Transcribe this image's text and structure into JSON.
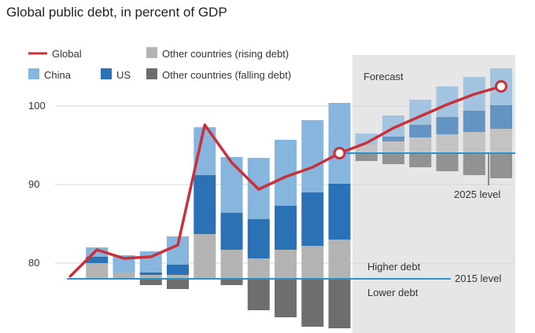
{
  "chart_data": {
    "type": "bar",
    "title": "Global public debt, in percent of GDP",
    "xlabel": "",
    "ylabel": "",
    "ylim": [
      75,
      105
    ],
    "yticks": [
      80,
      90,
      100
    ],
    "baseline_2015": 78.0,
    "baseline_2025": 94.0,
    "forecast_from_index": 10,
    "series": [
      {
        "name": "Global",
        "type": "line",
        "color": "#c8303c",
        "values": [
          78.3,
          81.7,
          80.6,
          80.8,
          82.3,
          97.6,
          92.8,
          89.4,
          91.0,
          92.2,
          94.0,
          95.3,
          97.2,
          98.7,
          100.2,
          101.5,
          102.5
        ]
      },
      {
        "name": "China",
        "type": "bar",
        "color": "#86b5de"
      },
      {
        "name": "US",
        "type": "bar",
        "color": "#2b71b5"
      },
      {
        "name": "Other countries (rising debt)",
        "type": "bar",
        "color": "#b3b3b3"
      },
      {
        "name": "Other countries (falling debt)",
        "type": "bar",
        "color": "#6e6e6e"
      }
    ],
    "stacks": [
      {
        "other_rising": 0.0,
        "us": 0.0,
        "china": 0.0,
        "falling": 0.0
      },
      {
        "other_rising": 2.0,
        "us": 0.8,
        "china": 1.2,
        "falling": 0.0
      },
      {
        "other_rising": 0.8,
        "us": 0.0,
        "china": 2.2,
        "falling": 0.0
      },
      {
        "other_rising": 0.5,
        "us": 0.3,
        "china": 2.7,
        "falling": -0.8
      },
      {
        "other_rising": 0.5,
        "us": 1.3,
        "china": 3.6,
        "falling": -1.3
      },
      {
        "other_rising": 5.7,
        "us": 7.5,
        "china": 6.1,
        "falling": 0.0
      },
      {
        "other_rising": 3.7,
        "us": 4.7,
        "china": 7.1,
        "falling": -0.8
      },
      {
        "other_rising": 2.6,
        "us": 5.0,
        "china": 7.8,
        "falling": -4.0
      },
      {
        "other_rising": 3.7,
        "us": 5.6,
        "china": 8.4,
        "falling": -4.9
      },
      {
        "other_rising": 4.2,
        "us": 6.8,
        "china": 9.2,
        "falling": -6.1
      },
      {
        "other_rising": 5.0,
        "us": 7.1,
        "china": 10.3,
        "falling": -6.3
      },
      {
        "other_rising": 1.1,
        "us": 0.0,
        "china": 1.4,
        "falling": -1.0
      },
      {
        "other_rising": 1.5,
        "us": 0.6,
        "china": 2.7,
        "falling": -1.4
      },
      {
        "other_rising": 2.0,
        "us": 1.6,
        "china": 3.2,
        "falling": -1.8
      },
      {
        "other_rising": 2.4,
        "us": 2.2,
        "china": 3.9,
        "falling": -2.3
      },
      {
        "other_rising": 2.7,
        "us": 2.7,
        "china": 4.3,
        "falling": -2.8
      },
      {
        "other_rising": 3.1,
        "us": 3.0,
        "china": 4.7,
        "falling": -3.2
      }
    ],
    "annotations": {
      "forecast": "Forecast",
      "level_2025": "2025 level",
      "higher_debt": "Higher debt",
      "lower_debt": "Lower debt",
      "level_2015": "2015 level"
    },
    "colors": {
      "china": "#86b5de",
      "us": "#2b71b5",
      "other_rising": "#b3b3b3",
      "falling": "#6e6e6e",
      "line": "#c8303c",
      "baseline": "#2a93c9",
      "forecast_bg": "#e6e6e6",
      "grid": "#d7d7d7"
    }
  }
}
